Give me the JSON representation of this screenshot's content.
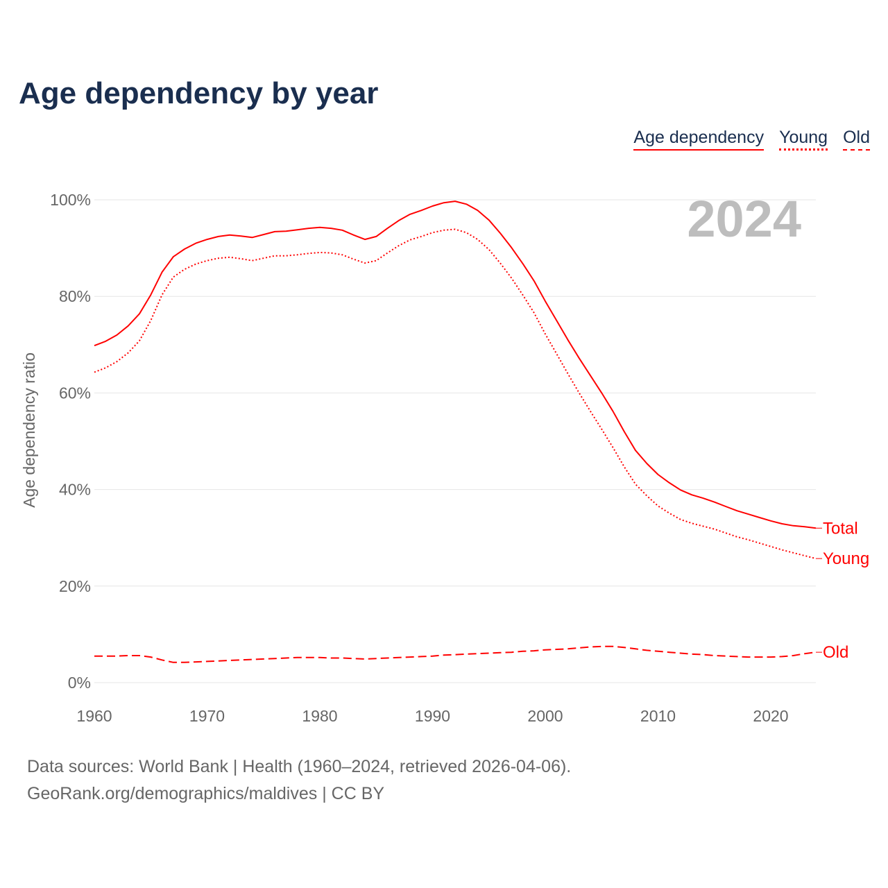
{
  "chart_data": {
    "type": "line",
    "title": "Age dependency by year",
    "ylabel": "Age dependency ratio",
    "xlabel": "",
    "ylim": [
      0,
      100
    ],
    "xlim": [
      1960,
      2024
    ],
    "y_ticks": [
      "0%",
      "20%",
      "40%",
      "60%",
      "80%",
      "100%"
    ],
    "y_tick_values": [
      0,
      20,
      40,
      60,
      80,
      100
    ],
    "x_ticks": [
      "1960",
      "1970",
      "1980",
      "1990",
      "2000",
      "2010",
      "2020"
    ],
    "x_tick_values": [
      1960,
      1970,
      1980,
      1990,
      2000,
      2010,
      2020
    ],
    "grid": true,
    "year_label": "2024",
    "legend": [
      "Age dependency",
      "Young",
      "Old"
    ],
    "legend_position": "top-right",
    "x_start": 1960,
    "series": [
      {
        "name": "Total",
        "label": "Total",
        "style": "solid",
        "color": "#ff0000",
        "values": [
          69.8,
          70.7,
          72,
          73.9,
          76.4,
          80.3,
          85,
          88.2,
          89.8,
          91,
          91.8,
          92.4,
          92.7,
          92.5,
          92.2,
          92.8,
          93.4,
          93.5,
          93.8,
          94.1,
          94.3,
          94.1,
          93.7,
          92.7,
          91.8,
          92.4,
          94.1,
          95.7,
          97,
          97.8,
          98.7,
          99.4,
          99.7,
          99.1,
          97.8,
          95.8,
          93.1,
          90.1,
          86.8,
          83.2,
          79,
          75,
          71,
          67.2,
          63.6,
          60,
          56.2,
          52,
          48.1,
          45.4,
          43.1,
          41.4,
          39.9,
          38.9,
          38.2,
          37.4,
          36.5,
          35.6,
          34.9,
          34.2,
          33.5,
          32.9,
          32.5,
          32.3,
          32
        ]
      },
      {
        "name": "Young",
        "label": "Young",
        "style": "dotted",
        "color": "#ff0000",
        "values": [
          64.3,
          65.2,
          66.5,
          68.3,
          70.8,
          75,
          80.3,
          84,
          85.6,
          86.7,
          87.4,
          87.9,
          88.1,
          87.8,
          87.4,
          87.9,
          88.4,
          88.4,
          88.6,
          88.9,
          89.1,
          89,
          88.6,
          87.7,
          86.9,
          87.4,
          89,
          90.5,
          91.7,
          92.4,
          93.2,
          93.7,
          93.9,
          93.2,
          91.8,
          89.7,
          86.9,
          83.8,
          80.3,
          76.6,
          72.2,
          68.1,
          64,
          60,
          56.2,
          52.5,
          48.7,
          44.7,
          41.1,
          38.7,
          36.6,
          35.1,
          33.8,
          33,
          32.4,
          31.8,
          31,
          30.2,
          29.6,
          28.9,
          28.2,
          27.5,
          26.9,
          26.3,
          25.7
        ]
      },
      {
        "name": "Old",
        "label": "Old",
        "style": "dashed",
        "color": "#ff0000",
        "values": [
          5.5,
          5.5,
          5.5,
          5.6,
          5.6,
          5.3,
          4.7,
          4.2,
          4.2,
          4.3,
          4.4,
          4.5,
          4.6,
          4.7,
          4.8,
          4.9,
          5,
          5.1,
          5.2,
          5.2,
          5.2,
          5.1,
          5.1,
          5,
          4.9,
          5,
          5.1,
          5.2,
          5.3,
          5.4,
          5.5,
          5.7,
          5.8,
          5.9,
          6,
          6.1,
          6.2,
          6.3,
          6.5,
          6.6,
          6.8,
          6.9,
          7,
          7.2,
          7.4,
          7.5,
          7.5,
          7.3,
          7,
          6.7,
          6.5,
          6.3,
          6.1,
          5.9,
          5.8,
          5.6,
          5.5,
          5.4,
          5.3,
          5.3,
          5.3,
          5.4,
          5.6,
          6,
          6.3
        ]
      }
    ]
  },
  "footer": {
    "line1": "Data sources: World Bank | Health (1960–2024, retrieved 2026-04-06).",
    "line2": "GeoRank.org/demographics/maldives | CC BY"
  }
}
